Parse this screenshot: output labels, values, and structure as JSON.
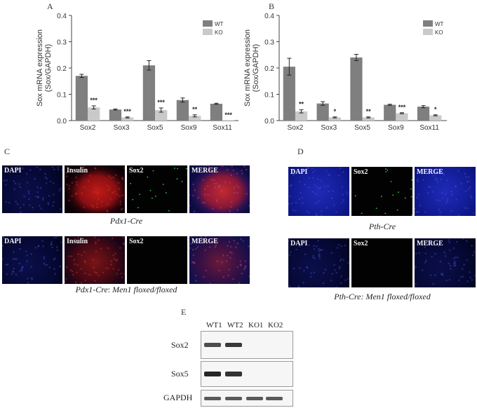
{
  "panel_labels": [
    "A",
    "B",
    "C",
    "D",
    "E"
  ],
  "chart_data": [
    {
      "type": "bar",
      "panel": "A",
      "categories": [
        "Sox2",
        "Sox3",
        "Sox5",
        "Sox9",
        "Sox11"
      ],
      "series": [
        {
          "name": "WT",
          "values": [
            0.17,
            0.042,
            0.21,
            0.078,
            0.064
          ],
          "errors": [
            0.006,
            0.002,
            0.018,
            0.008,
            0.002
          ],
          "color": "#7f7f7f"
        },
        {
          "name": "KO",
          "values": [
            0.05,
            0.012,
            0.04,
            0.018,
            0.0
          ],
          "errors": [
            0.006,
            0.002,
            0.008,
            0.004,
            0.0
          ],
          "color": "#c9c9c9"
        }
      ],
      "significance": [
        "***",
        "***",
        "***",
        "**",
        "***"
      ],
      "ylabel": "Sox mRNA expression\n(Sox/GAPDH)",
      "ylim": [
        0,
        0.4
      ],
      "yticks": [
        "0.0",
        "0.1",
        "0.2",
        "0.3",
        "0.4"
      ],
      "legend": "top-right"
    },
    {
      "type": "bar",
      "panel": "B",
      "categories": [
        "Sox2",
        "Sox3",
        "Sox5",
        "Sox9",
        "Sox11"
      ],
      "series": [
        {
          "name": "WT",
          "values": [
            0.205,
            0.065,
            0.24,
            0.06,
            0.053
          ],
          "errors": [
            0.032,
            0.007,
            0.012,
            0.002,
            0.004
          ],
          "color": "#7f7f7f"
        },
        {
          "name": "KO",
          "values": [
            0.035,
            0.012,
            0.012,
            0.028,
            0.02
          ],
          "errors": [
            0.006,
            0.002,
            0.002,
            0.002,
            0.002
          ],
          "color": "#c9c9c9"
        }
      ],
      "significance": [
        "**",
        "*",
        "**",
        "***",
        "*"
      ],
      "ylabel": "Sox mRNA expression\n(Sox/GAPDH)",
      "ylim": [
        0,
        0.4
      ],
      "yticks": [
        "0.0",
        "0.1",
        "0.2",
        "0.3",
        "0.4"
      ],
      "legend": "top-right"
    }
  ],
  "panel_c": {
    "row1": {
      "images": [
        {
          "label": "DAPI",
          "stain": "dapi-dim"
        },
        {
          "label": "Insulin",
          "stain": "insulin-bright"
        },
        {
          "label": "Sox2",
          "stain": "sox2-dots"
        },
        {
          "label": "MERGE",
          "stain": "merge-bright"
        }
      ],
      "caption": "Pdx1-Cre"
    },
    "row2": {
      "images": [
        {
          "label": "DAPI",
          "stain": "dapi-dim"
        },
        {
          "label": "Insulin",
          "stain": "insulin-dim"
        },
        {
          "label": "Sox2",
          "stain": "black"
        },
        {
          "label": "MERGE",
          "stain": "merge-dim"
        }
      ],
      "caption_main": "Pdx1-Cre",
      "caption_sep": ": ",
      "caption_rest": "Men1 floxed/floxed"
    }
  },
  "panel_d": {
    "row1": {
      "images": [
        {
          "label": "DAPI",
          "stain": "dapi-bright"
        },
        {
          "label": "Sox2",
          "stain": "sox2-dots"
        },
        {
          "label": "MERGE",
          "stain": "dapi-bright"
        }
      ],
      "caption": "Pth-Cre"
    },
    "row2": {
      "images": [
        {
          "label": "DAPI",
          "stain": "dapi-dim"
        },
        {
          "label": "Sox2",
          "stain": "black"
        },
        {
          "label": "MERGE",
          "stain": "dapi-dim"
        }
      ],
      "caption": "Pth-Cre: Men1 floxed/floxed"
    }
  },
  "panel_e": {
    "lanes": [
      "WT1",
      "WT2",
      "KO1",
      "KO2"
    ],
    "rows": [
      {
        "label": "Sox2",
        "bands": [
          0.7,
          0.85,
          0.0,
          0.0
        ]
      },
      {
        "label": "Sox5",
        "bands": [
          1.0,
          0.9,
          0.0,
          0.0
        ]
      },
      {
        "label": "GAPDH",
        "bands": [
          0.6,
          0.6,
          0.6,
          0.6
        ]
      }
    ]
  }
}
